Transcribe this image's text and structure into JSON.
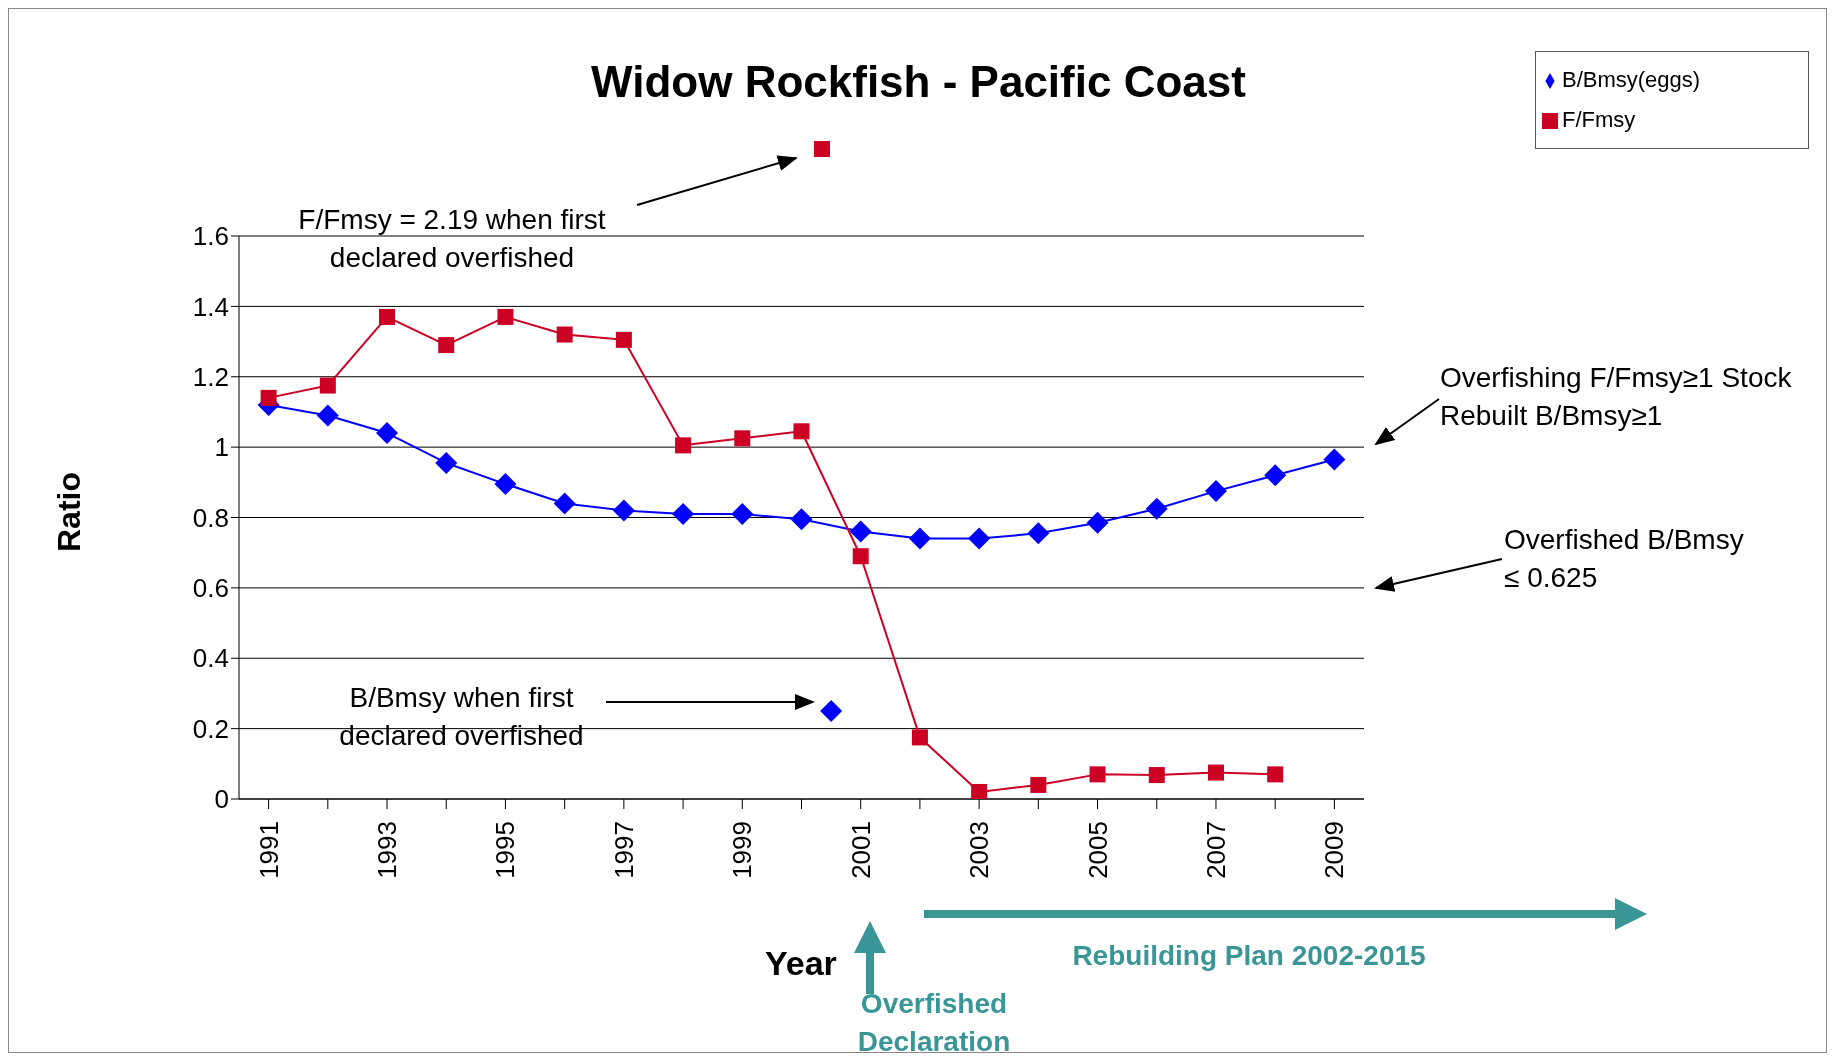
{
  "chart_data": {
    "type": "line",
    "title": "Widow Rockfish - Pacific Coast",
    "xlabel": "Year",
    "ylabel": "Ratio",
    "x": [
      1991,
      1992,
      1993,
      1994,
      1995,
      1996,
      1997,
      1998,
      1999,
      2000,
      2001,
      2002,
      2003,
      2004,
      2005,
      2006,
      2007,
      2008,
      2009
    ],
    "series": [
      {
        "name": "B/Bmsy(eggs)",
        "color": "#0000ff",
        "marker": "diamond",
        "values": [
          1.12,
          1.09,
          1.04,
          0.955,
          0.895,
          0.84,
          0.82,
          0.81,
          0.81,
          0.795,
          0.76,
          0.74,
          0.74,
          0.755,
          0.785,
          0.825,
          0.875,
          0.92,
          0.965
        ]
      },
      {
        "name": "F/Fmsy",
        "color": "#cc0022",
        "marker": "square",
        "values": [
          1.14,
          1.175,
          1.37,
          1.29,
          1.37,
          1.32,
          1.305,
          1.005,
          1.025,
          1.045,
          0.69,
          0.175,
          0.02,
          0.04,
          0.07,
          0.068,
          0.075,
          0.07,
          null
        ]
      },
      {
        "type": "scatter",
        "color": "#0000ff",
        "marker": "diamond",
        "x": [
          2000.5
        ],
        "values": [
          0.25
        ]
      }
    ],
    "xlim": [
      1990.5,
      2009.5
    ],
    "xticks": [
      1991,
      {
        "value": 1992,
        "label": null
      },
      1993,
      {
        "value": 1994,
        "label": null
      },
      1995,
      {
        "value": 1996,
        "label": null
      },
      1997,
      {
        "value": 1998,
        "label": null
      },
      1999,
      {
        "value": 2000,
        "label": null
      },
      2001,
      {
        "value": 2002,
        "label": null
      },
      2003,
      {
        "value": 2004,
        "label": null
      },
      2005,
      {
        "value": 2006,
        "label": null
      },
      2007,
      {
        "value": 2008,
        "label": null
      },
      2009
    ],
    "ylim": [
      0,
      1.6
    ],
    "yticks": [
      0,
      0.2,
      0.4,
      0.6,
      0.8,
      1,
      1.2,
      1.4,
      1.6
    ],
    "grid": "y",
    "legend": "top right",
    "annotations": [
      "F/Fmsy = 2.19 when first declared overfished",
      "B/Bmsy when first declared overfished",
      "Overfishing F/Fmsy≥1 Stock Rebuilt B/Bmsy≥1",
      "Overfished B/Bmsy ≤ 0.625",
      "Rebuilding Plan 2002-2015",
      "Overfished Declaration"
    ]
  }
}
